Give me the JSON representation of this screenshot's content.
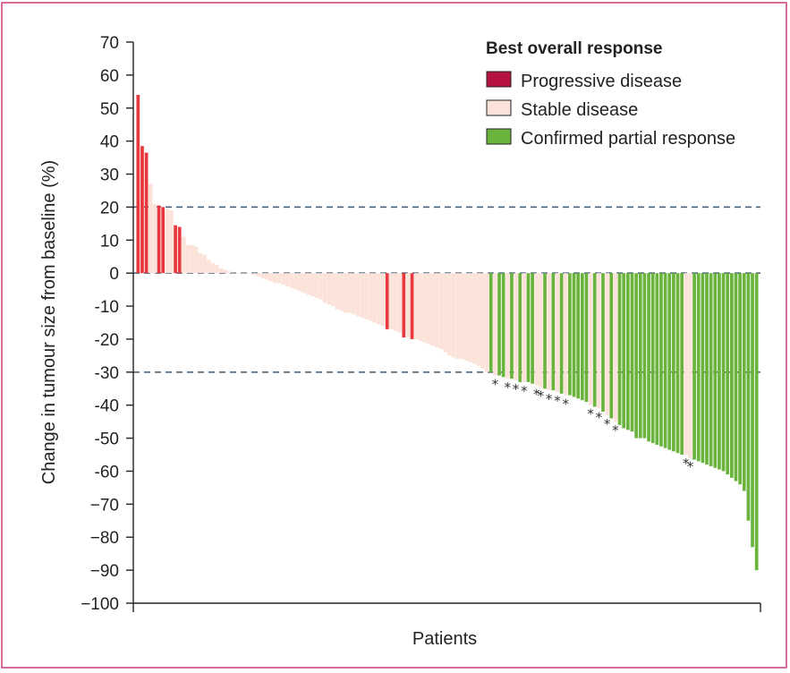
{
  "colors": {
    "frame": "#c8417a",
    "progressive": "#e8383d",
    "progressive_legend": "#b5123f",
    "stable": "#fbe3da",
    "partial": "#6ab43e",
    "axis": "#222222",
    "refline": "#3d5a73"
  },
  "chart_data": {
    "type": "bar",
    "title": "",
    "xlabel": "Patients",
    "ylabel": "Change in tumour size  from baseline (%)",
    "ylim": [
      -100,
      70
    ],
    "yticks": [
      {
        "value": 70,
        "label": "70"
      },
      {
        "value": 60,
        "label": "60"
      },
      {
        "value": 50,
        "label": "50"
      },
      {
        "value": 40,
        "label": "40"
      },
      {
        "value": 30,
        "label": "30"
      },
      {
        "value": 20,
        "label": "20"
      },
      {
        "value": 10,
        "label": "10"
      },
      {
        "value": 0,
        "label": "0"
      },
      {
        "value": -10,
        "label": "-10"
      },
      {
        "value": -20,
        "label": "-20"
      },
      {
        "value": -30,
        "label": "-30"
      },
      {
        "value": -40,
        "label": "-40"
      },
      {
        "value": -50,
        "label": "-50"
      },
      {
        "value": -60,
        "label": "-60"
      },
      {
        "value": -70,
        "label": "−70"
      },
      {
        "value": -80,
        "label": "−80"
      },
      {
        "value": -90,
        "label": "−90"
      },
      {
        "value": -100,
        "label": "−100"
      }
    ],
    "reference_lines": [
      20,
      0,
      -30
    ],
    "grid": false,
    "legend": {
      "title": "Best overall response",
      "position": "top-right",
      "entries": [
        {
          "key": "P",
          "label": "Progressive disease"
        },
        {
          "key": "S",
          "label": "Stable disease"
        },
        {
          "key": "R",
          "label": "Confirmed partial response"
        }
      ]
    },
    "marker_symbol": "*",
    "bars": [
      {
        "value": 54,
        "response": "P"
      },
      {
        "value": 38.5,
        "response": "P"
      },
      {
        "value": 36.5,
        "response": "P"
      },
      {
        "value": 27,
        "response": "S"
      },
      {
        "value": 21,
        "response": "S"
      },
      {
        "value": 20.5,
        "response": "P"
      },
      {
        "value": 20,
        "response": "P"
      },
      {
        "value": 19.5,
        "response": "S"
      },
      {
        "value": 19,
        "response": "S"
      },
      {
        "value": 14.5,
        "response": "P"
      },
      {
        "value": 14,
        "response": "P"
      },
      {
        "value": 11,
        "response": "S"
      },
      {
        "value": 8.5,
        "response": "S"
      },
      {
        "value": 8.5,
        "response": "S"
      },
      {
        "value": 8,
        "response": "S"
      },
      {
        "value": 6,
        "response": "S"
      },
      {
        "value": 5.5,
        "response": "S"
      },
      {
        "value": 4,
        "response": "S"
      },
      {
        "value": 3,
        "response": "S"
      },
      {
        "value": 2.5,
        "response": "S"
      },
      {
        "value": 1.5,
        "response": "S"
      },
      {
        "value": 1,
        "response": "S"
      },
      {
        "value": 0.5,
        "response": "S"
      },
      {
        "value": 0,
        "response": "S"
      },
      {
        "value": 0,
        "response": "S"
      },
      {
        "value": 0,
        "response": "S"
      },
      {
        "value": 0,
        "response": "S"
      },
      {
        "value": 0,
        "response": "S"
      },
      {
        "value": -0.5,
        "response": "S"
      },
      {
        "value": -1,
        "response": "S"
      },
      {
        "value": -1.5,
        "response": "S"
      },
      {
        "value": -2,
        "response": "S"
      },
      {
        "value": -2.5,
        "response": "S"
      },
      {
        "value": -3,
        "response": "S"
      },
      {
        "value": -3,
        "response": "S"
      },
      {
        "value": -3.5,
        "response": "S"
      },
      {
        "value": -4,
        "response": "S"
      },
      {
        "value": -4.5,
        "response": "S"
      },
      {
        "value": -5,
        "response": "S"
      },
      {
        "value": -5.5,
        "response": "S"
      },
      {
        "value": -6,
        "response": "S"
      },
      {
        "value": -6.5,
        "response": "S"
      },
      {
        "value": -7,
        "response": "S"
      },
      {
        "value": -7.5,
        "response": "S"
      },
      {
        "value": -8,
        "response": "S"
      },
      {
        "value": -9,
        "response": "S"
      },
      {
        "value": -9.5,
        "response": "S"
      },
      {
        "value": -10,
        "response": "S"
      },
      {
        "value": -11,
        "response": "S"
      },
      {
        "value": -11.5,
        "response": "S"
      },
      {
        "value": -12,
        "response": "S"
      },
      {
        "value": -12,
        "response": "S"
      },
      {
        "value": -12.5,
        "response": "S"
      },
      {
        "value": -13,
        "response": "S"
      },
      {
        "value": -13.5,
        "response": "S"
      },
      {
        "value": -14,
        "response": "S"
      },
      {
        "value": -14.5,
        "response": "S"
      },
      {
        "value": -15,
        "response": "S"
      },
      {
        "value": -15.5,
        "response": "S"
      },
      {
        "value": -16,
        "response": "S"
      },
      {
        "value": -17,
        "response": "P"
      },
      {
        "value": -17,
        "response": "S"
      },
      {
        "value": -17.5,
        "response": "S"
      },
      {
        "value": -18,
        "response": "S"
      },
      {
        "value": -19.5,
        "response": "P"
      },
      {
        "value": -19.5,
        "response": "S"
      },
      {
        "value": -20,
        "response": "P"
      },
      {
        "value": -20,
        "response": "S"
      },
      {
        "value": -20.5,
        "response": "S"
      },
      {
        "value": -21,
        "response": "S"
      },
      {
        "value": -21.5,
        "response": "S"
      },
      {
        "value": -22,
        "response": "S"
      },
      {
        "value": -22.5,
        "response": "S"
      },
      {
        "value": -23,
        "response": "S"
      },
      {
        "value": -24,
        "response": "S"
      },
      {
        "value": -25,
        "response": "S"
      },
      {
        "value": -25.5,
        "response": "S"
      },
      {
        "value": -26,
        "response": "S"
      },
      {
        "value": -26,
        "response": "S"
      },
      {
        "value": -26.5,
        "response": "S"
      },
      {
        "value": -27,
        "response": "S"
      },
      {
        "value": -27.5,
        "response": "S"
      },
      {
        "value": -28,
        "response": "S"
      },
      {
        "value": -29,
        "response": "S"
      },
      {
        "value": -30,
        "response": "S"
      },
      {
        "value": -30,
        "response": "R"
      },
      {
        "value": -31,
        "response": "S",
        "marked": true
      },
      {
        "value": -31,
        "response": "R"
      },
      {
        "value": -31.5,
        "response": "R"
      },
      {
        "value": -32,
        "response": "S",
        "marked": true
      },
      {
        "value": -32,
        "response": "R"
      },
      {
        "value": -32.5,
        "response": "S",
        "marked": true
      },
      {
        "value": -33,
        "response": "R"
      },
      {
        "value": -33,
        "response": "S",
        "marked": true
      },
      {
        "value": -33,
        "response": "R"
      },
      {
        "value": -33.5,
        "response": "R"
      },
      {
        "value": -34,
        "response": "S",
        "marked": true
      },
      {
        "value": -34.5,
        "response": "S",
        "marked": true
      },
      {
        "value": -35,
        "response": "R"
      },
      {
        "value": -35.5,
        "response": "S",
        "marked": true
      },
      {
        "value": -35.5,
        "response": "R"
      },
      {
        "value": -36,
        "response": "S",
        "marked": true
      },
      {
        "value": -36.5,
        "response": "R"
      },
      {
        "value": -37,
        "response": "S",
        "marked": true
      },
      {
        "value": -37,
        "response": "R"
      },
      {
        "value": -37.5,
        "response": "R"
      },
      {
        "value": -38,
        "response": "R"
      },
      {
        "value": -38.5,
        "response": "R"
      },
      {
        "value": -39,
        "response": "R"
      },
      {
        "value": -40,
        "response": "S",
        "marked": true
      },
      {
        "value": -40.5,
        "response": "R"
      },
      {
        "value": -41,
        "response": "S",
        "marked": true
      },
      {
        "value": -42,
        "response": "R"
      },
      {
        "value": -43,
        "response": "S",
        "marked": true
      },
      {
        "value": -44,
        "response": "R"
      },
      {
        "value": -45,
        "response": "S",
        "marked": true
      },
      {
        "value": -46,
        "response": "R"
      },
      {
        "value": -47,
        "response": "R"
      },
      {
        "value": -47.5,
        "response": "R"
      },
      {
        "value": -48,
        "response": "R"
      },
      {
        "value": -50,
        "response": "R"
      },
      {
        "value": -50,
        "response": "R"
      },
      {
        "value": -50,
        "response": "R"
      },
      {
        "value": -51,
        "response": "R"
      },
      {
        "value": -51.5,
        "response": "R"
      },
      {
        "value": -52,
        "response": "R"
      },
      {
        "value": -52.5,
        "response": "R"
      },
      {
        "value": -53,
        "response": "R"
      },
      {
        "value": -53.5,
        "response": "R"
      },
      {
        "value": -54,
        "response": "R"
      },
      {
        "value": -54.5,
        "response": "R"
      },
      {
        "value": -55,
        "response": "R"
      },
      {
        "value": -55,
        "response": "S",
        "marked": true
      },
      {
        "value": -56,
        "response": "S",
        "marked": true
      },
      {
        "value": -56.5,
        "response": "R"
      },
      {
        "value": -57,
        "response": "R"
      },
      {
        "value": -57.5,
        "response": "R"
      },
      {
        "value": -58,
        "response": "R"
      },
      {
        "value": -58.5,
        "response": "R"
      },
      {
        "value": -59,
        "response": "R"
      },
      {
        "value": -59.5,
        "response": "R"
      },
      {
        "value": -60,
        "response": "R"
      },
      {
        "value": -61,
        "response": "R"
      },
      {
        "value": -62,
        "response": "R"
      },
      {
        "value": -63,
        "response": "R"
      },
      {
        "value": -64,
        "response": "R"
      },
      {
        "value": -66,
        "response": "R"
      },
      {
        "value": -75,
        "response": "R"
      },
      {
        "value": -83,
        "response": "R"
      },
      {
        "value": -90,
        "response": "R"
      }
    ]
  }
}
